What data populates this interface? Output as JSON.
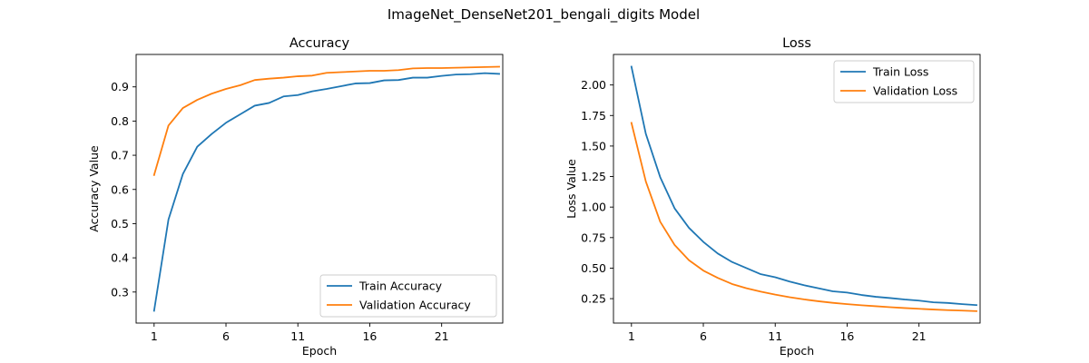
{
  "figure": {
    "title": "ImageNet_DenseNet201_bengali_digits Model"
  },
  "chart_data": [
    {
      "type": "line",
      "title": "Accuracy",
      "xlabel": "Epoch",
      "ylabel": "Accuracy Value",
      "xlim": [
        -0.25,
        25.25
      ],
      "ylim": [
        0.2092,
        0.9948
      ],
      "xticks": [
        1,
        6,
        11,
        16,
        21
      ],
      "yticks": [
        0.3,
        0.4,
        0.5,
        0.6,
        0.7,
        0.8,
        0.9
      ],
      "ytick_labels": [
        "0.3",
        "0.4",
        "0.5",
        "0.6",
        "0.7",
        "0.8",
        "0.9"
      ],
      "legend_position": "lower-right",
      "x": [
        1,
        2,
        3,
        4,
        5,
        6,
        7,
        8,
        9,
        10,
        11,
        12,
        13,
        14,
        15,
        16,
        17,
        18,
        19,
        20,
        21,
        22,
        23,
        24,
        25
      ],
      "series": [
        {
          "name": "Train Accuracy",
          "color": "#1f77b4",
          "values": [
            0.245,
            0.512,
            0.645,
            0.725,
            0.762,
            0.795,
            0.82,
            0.845,
            0.853,
            0.872,
            0.876,
            0.887,
            0.894,
            0.902,
            0.91,
            0.911,
            0.919,
            0.92,
            0.927,
            0.927,
            0.932,
            0.936,
            0.937,
            0.94,
            0.938
          ]
        },
        {
          "name": "Validation Accuracy",
          "color": "#ff7f0e",
          "values": [
            0.642,
            0.787,
            0.838,
            0.862,
            0.88,
            0.894,
            0.905,
            0.92,
            0.924,
            0.927,
            0.931,
            0.933,
            0.941,
            0.943,
            0.945,
            0.947,
            0.947,
            0.949,
            0.954,
            0.955,
            0.955,
            0.956,
            0.957,
            0.958,
            0.959
          ]
        }
      ]
    },
    {
      "type": "line",
      "title": "Loss",
      "xlabel": "Epoch",
      "ylabel": "Loss Value",
      "xlim": [
        -0.25,
        25.25
      ],
      "ylim": [
        0.05,
        2.25
      ],
      "xticks": [
        1,
        6,
        11,
        16,
        21
      ],
      "yticks": [
        0.25,
        0.5,
        0.75,
        1.0,
        1.25,
        1.5,
        1.75,
        2.0
      ],
      "ytick_labels": [
        "0.25",
        "0.50",
        "0.75",
        "1.00",
        "1.25",
        "1.50",
        "1.75",
        "2.00"
      ],
      "legend_position": "upper-right",
      "x": [
        1,
        2,
        3,
        4,
        5,
        6,
        7,
        8,
        9,
        10,
        11,
        12,
        13,
        14,
        15,
        16,
        17,
        18,
        19,
        20,
        21,
        22,
        23,
        24,
        25
      ],
      "series": [
        {
          "name": "Train Loss",
          "color": "#1f77b4",
          "values": [
            2.15,
            1.6,
            1.245,
            0.99,
            0.83,
            0.715,
            0.62,
            0.55,
            0.5,
            0.45,
            0.425,
            0.39,
            0.36,
            0.335,
            0.31,
            0.3,
            0.28,
            0.265,
            0.255,
            0.243,
            0.234,
            0.22,
            0.215,
            0.205,
            0.197
          ]
        },
        {
          "name": "Validation Loss",
          "color": "#ff7f0e",
          "values": [
            1.69,
            1.21,
            0.88,
            0.69,
            0.565,
            0.48,
            0.42,
            0.37,
            0.335,
            0.307,
            0.283,
            0.262,
            0.244,
            0.229,
            0.216,
            0.205,
            0.196,
            0.188,
            0.18,
            0.173,
            0.167,
            0.161,
            0.156,
            0.152,
            0.148
          ]
        }
      ]
    }
  ]
}
